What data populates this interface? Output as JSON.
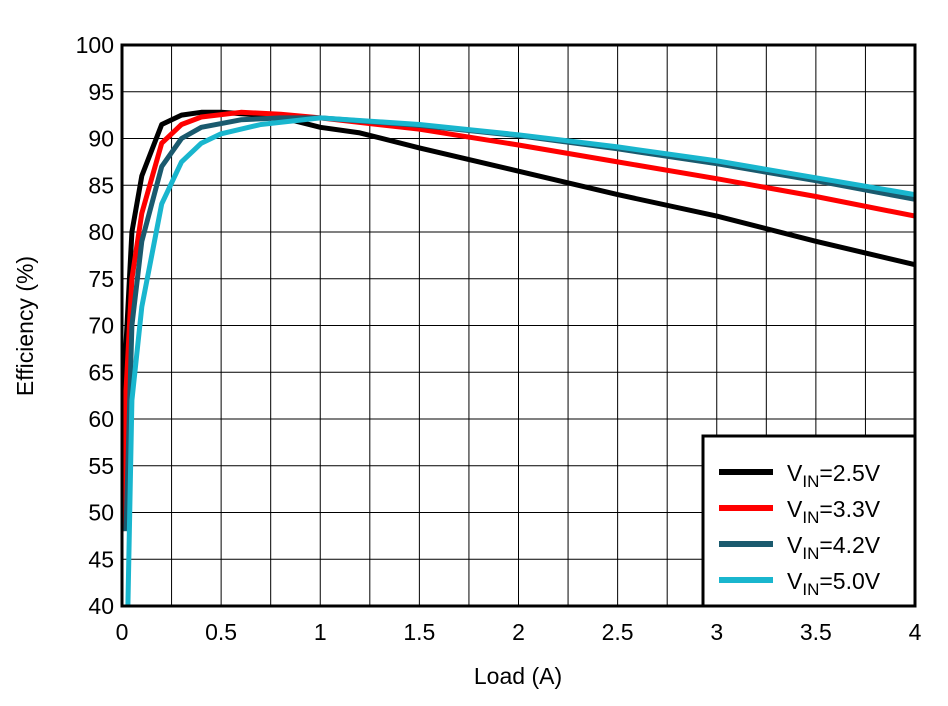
{
  "chart_data": {
    "type": "line",
    "xlabel": "Load (A)",
    "ylabel": "Efficiency (%)",
    "xlim": [
      0,
      4
    ],
    "xticks": [
      0,
      0.5,
      1,
      1.5,
      2,
      2.5,
      3,
      3.5,
      4
    ],
    "ylim": [
      40,
      100
    ],
    "yticks": [
      40,
      45,
      50,
      55,
      60,
      65,
      70,
      75,
      80,
      85,
      90,
      95,
      100
    ],
    "grid": true,
    "legend": "lower right",
    "series": [
      {
        "name": "VIN=2.5V",
        "color": "#000000",
        "x": [
          0,
          0.02,
          0.05,
          0.1,
          0.2,
          0.3,
          0.4,
          0.5,
          0.7,
          0.85,
          1,
          1.2,
          1.5,
          2,
          2.5,
          3,
          3.5,
          4
        ],
        "values": [
          53,
          68,
          80,
          86,
          91.5,
          92.5,
          92.8,
          92.8,
          92.5,
          92,
          91.2,
          90.6,
          89,
          86.5,
          84,
          81.7,
          79,
          76.5
        ]
      },
      {
        "name": "VIN=3.3V",
        "color": "#ff0000",
        "x": [
          0,
          0.02,
          0.05,
          0.1,
          0.2,
          0.3,
          0.4,
          0.6,
          0.8,
          1,
          1.5,
          2,
          2.5,
          3,
          3.5,
          4
        ],
        "values": [
          48,
          63,
          75,
          82,
          89.5,
          91.5,
          92.3,
          92.8,
          92.6,
          92.2,
          91,
          89.3,
          87.5,
          85.7,
          83.8,
          81.7
        ]
      },
      {
        "name": "VIN=4.2V",
        "color": "#1a5a6e",
        "x": [
          0.02,
          0.05,
          0.1,
          0.2,
          0.3,
          0.4,
          0.6,
          0.8,
          1,
          1.5,
          2,
          2.5,
          3,
          3.5,
          4
        ],
        "values": [
          48,
          70,
          79,
          87,
          90,
          91.2,
          92,
          92.2,
          92.2,
          91.4,
          90.3,
          88.9,
          87.3,
          85.5,
          83.5
        ]
      },
      {
        "name": "VIN=5.0V",
        "color": "#19b6ce",
        "x": [
          0.03,
          0.05,
          0.1,
          0.2,
          0.3,
          0.4,
          0.5,
          0.7,
          1,
          1.5,
          2,
          2.5,
          3,
          3.5,
          4
        ],
        "values": [
          40,
          62,
          72,
          83,
          87.5,
          89.5,
          90.5,
          91.5,
          92.2,
          91.5,
          90.4,
          89.1,
          87.6,
          85.8,
          84
        ]
      }
    ]
  }
}
